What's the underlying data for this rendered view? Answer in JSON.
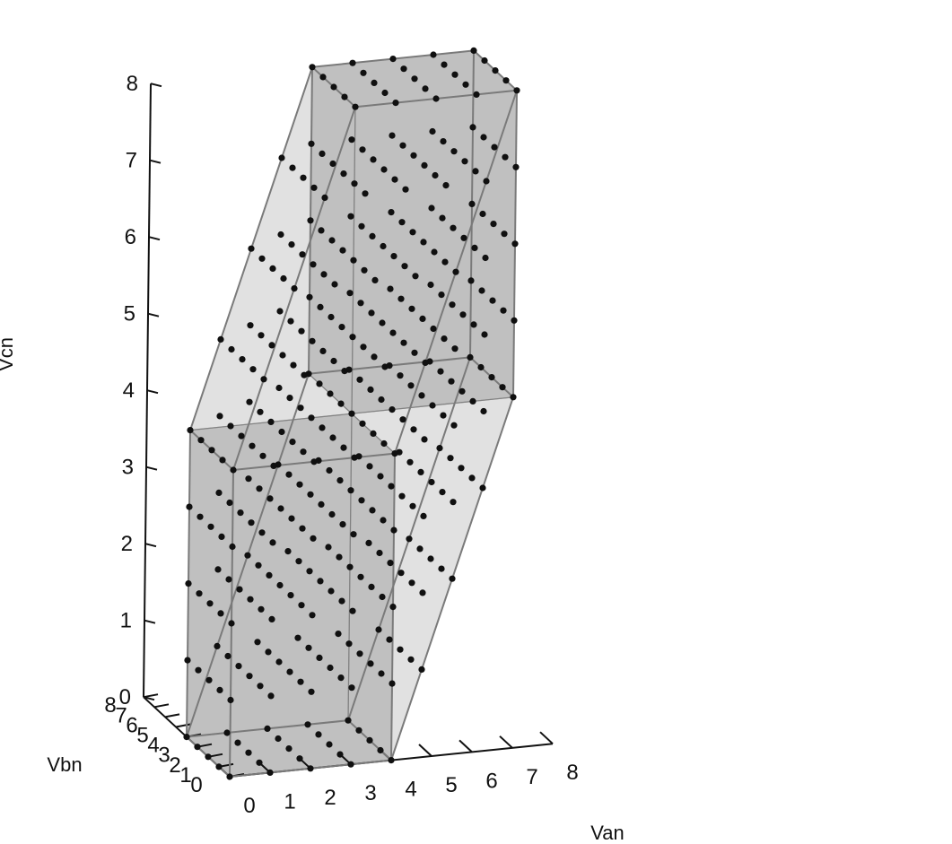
{
  "chart_data": {
    "type": "scatter",
    "projection": "3d",
    "axes": {
      "x": {
        "label": "Van",
        "range": [
          0,
          8
        ],
        "ticks": [
          "0",
          "1",
          "2",
          "3",
          "4",
          "5",
          "6",
          "7",
          "8"
        ]
      },
      "y": {
        "label": "Vbn",
        "range": [
          0,
          8
        ],
        "ticks": [
          "0",
          "1",
          "2",
          "3",
          "4",
          "5",
          "6",
          "7",
          "8"
        ]
      },
      "z": {
        "label": "Vcn",
        "range": [
          0,
          8
        ],
        "ticks": [
          "0",
          "1",
          "2",
          "3",
          "4",
          "5",
          "6",
          "7",
          "8"
        ]
      }
    },
    "grid": false,
    "legend": "none",
    "colors": {
      "points": "#101010",
      "faces": "#9a9a9a",
      "inner_faces": "#7f7f7f",
      "edges": "#7a7a7a",
      "axes": "#111111"
    },
    "volumes": [
      {
        "name": "",
        "x": [
          0,
          4
        ],
        "y": [
          0,
          4
        ],
        "z": [
          0,
          4
        ]
      },
      {
        "name": "",
        "x": [
          4,
          8
        ],
        "y": [
          4,
          8
        ],
        "z": [
          4,
          8
        ]
      }
    ],
    "series": [
      {
        "name": "",
        "rule": "grid points with max(Van,Vbn,Vcn) - min(Van,Vbn,Vcn) <= 4",
        "x": [
          0,
          1,
          2,
          3,
          4,
          5,
          6,
          7,
          8
        ],
        "y": [
          0,
          1,
          2,
          3,
          4,
          5,
          6,
          7,
          8
        ],
        "z": [
          0,
          1,
          2,
          3,
          4,
          5,
          6,
          7,
          8
        ]
      }
    ]
  }
}
